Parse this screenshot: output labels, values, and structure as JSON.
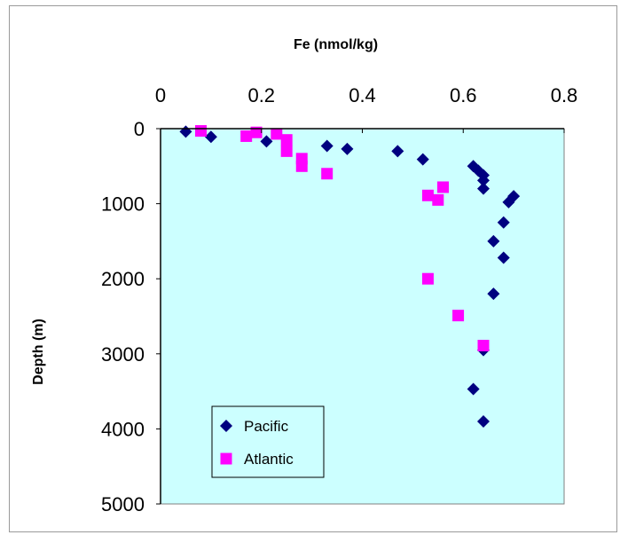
{
  "chart_data": {
    "type": "scatter",
    "xlabel": "Fe (nmol/kg)",
    "ylabel": "Depth (m)",
    "xlim": [
      0,
      0.8
    ],
    "ylim": [
      0,
      5000
    ],
    "y_inverted": true,
    "x_axis_position": "top",
    "x_ticks": [
      "0",
      "0.2",
      "0.4",
      "0.6",
      "0.8"
    ],
    "y_ticks": [
      "0",
      "1000",
      "2000",
      "3000",
      "4000",
      "5000"
    ],
    "plot_background": "#ccffff",
    "grid": false,
    "legend_position": "bottom-left",
    "series": [
      {
        "name": "Pacific",
        "marker": "diamond",
        "color": "#000080",
        "points": [
          [
            0.05,
            40
          ],
          [
            0.1,
            110
          ],
          [
            0.21,
            170
          ],
          [
            0.33,
            230
          ],
          [
            0.37,
            270
          ],
          [
            0.47,
            300
          ],
          [
            0.52,
            410
          ],
          [
            0.62,
            500
          ],
          [
            0.63,
            560
          ],
          [
            0.64,
            620
          ],
          [
            0.64,
            690
          ],
          [
            0.64,
            800
          ],
          [
            0.7,
            900
          ],
          [
            0.69,
            980
          ],
          [
            0.68,
            1250
          ],
          [
            0.66,
            1500
          ],
          [
            0.68,
            1720
          ],
          [
            0.66,
            2200
          ],
          [
            0.64,
            2950
          ],
          [
            0.62,
            3470
          ],
          [
            0.64,
            3900
          ]
        ]
      },
      {
        "name": "Atlantic",
        "marker": "square",
        "color": "#ff00ff",
        "points": [
          [
            0.08,
            30
          ],
          [
            0.17,
            100
          ],
          [
            0.19,
            50
          ],
          [
            0.23,
            70
          ],
          [
            0.25,
            150
          ],
          [
            0.25,
            300
          ],
          [
            0.28,
            400
          ],
          [
            0.28,
            500
          ],
          [
            0.33,
            600
          ],
          [
            0.53,
            890
          ],
          [
            0.55,
            950
          ],
          [
            0.56,
            780
          ],
          [
            0.53,
            2000
          ],
          [
            0.59,
            2490
          ],
          [
            0.64,
            2890
          ]
        ]
      }
    ]
  }
}
